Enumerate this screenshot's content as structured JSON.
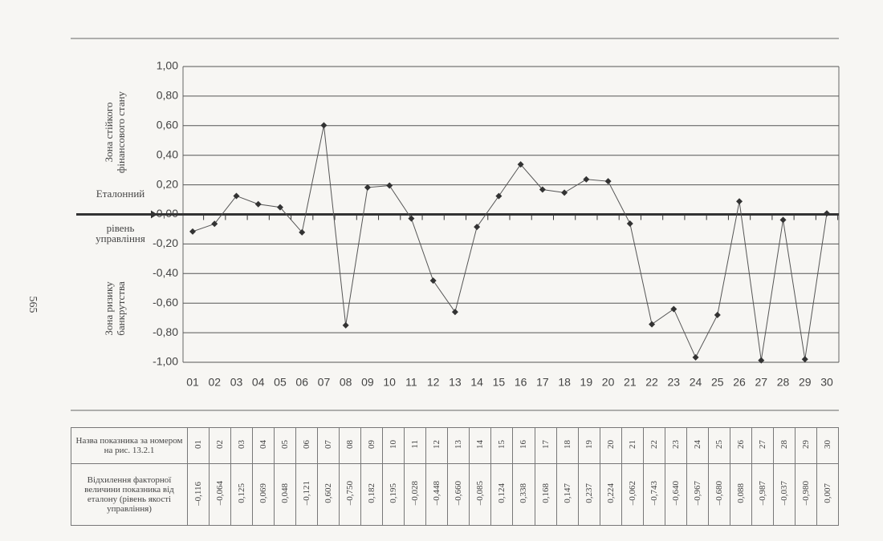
{
  "page_number": "565",
  "chart_data": {
    "type": "line",
    "categories": [
      "01",
      "02",
      "03",
      "04",
      "05",
      "06",
      "07",
      "08",
      "09",
      "10",
      "11",
      "12",
      "13",
      "14",
      "15",
      "16",
      "17",
      "18",
      "19",
      "20",
      "21",
      "22",
      "23",
      "24",
      "25",
      "26",
      "27",
      "28",
      "29",
      "30"
    ],
    "values": [
      -0.116,
      -0.064,
      0.125,
      0.069,
      0.048,
      -0.121,
      0.602,
      -0.75,
      0.182,
      0.195,
      -0.028,
      -0.448,
      -0.66,
      -0.085,
      0.124,
      0.338,
      0.168,
      0.147,
      0.237,
      0.224,
      -0.062,
      -0.743,
      -0.64,
      -0.967,
      -0.68,
      0.088,
      -0.987,
      -0.037,
      -0.98,
      0.007
    ],
    "color": "#555555",
    "ylim": [
      -1,
      1
    ],
    "yticks": [
      {
        "value": 1,
        "label": "1,00"
      },
      {
        "value": 0.8,
        "label": "0,80"
      },
      {
        "value": 0.6,
        "label": "0,60"
      },
      {
        "value": 0.4,
        "label": "0,40"
      },
      {
        "value": 0.2,
        "label": "0,20"
      },
      {
        "value": 0,
        "label": "0,00"
      },
      {
        "value": -0.2,
        "label": "-0,20"
      },
      {
        "value": -0.4,
        "label": "-0,40"
      },
      {
        "value": -0.6,
        "label": "-0,60"
      },
      {
        "value": -0.8,
        "label": "-0,80"
      },
      {
        "value": -1,
        "label": "-1,00"
      }
    ],
    "grid": true,
    "annotations": [
      "Зона стійкого",
      "фінансового стану",
      "Еталонний",
      "рівень",
      "управління",
      "Зона ризику",
      "банкрутства"
    ]
  },
  "table": {
    "rows": [
      [
        "Назва показника за номером на рис. 13.2.1",
        "01",
        "02",
        "03",
        "04",
        "05",
        "06",
        "07",
        "08",
        "09",
        "10",
        "11",
        "12",
        "13",
        "14",
        "15",
        "16",
        "17",
        "18",
        "19",
        "20",
        "21",
        "22",
        "23",
        "24",
        "25",
        "26",
        "27",
        "28",
        "29",
        "30"
      ],
      [
        "Відхилення факторної величини показника від еталону (рівень якості управління)",
        "–0,116",
        "–0,064",
        "0,125",
        "0,069",
        "0,048",
        "–0,121",
        "0,602",
        "–0,750",
        "0,182",
        "0,195",
        "–0,028",
        "–0,448",
        "–0,660",
        "–0,085",
        "0,124",
        "0,338",
        "0,168",
        "0,147",
        "0,237",
        "0,224",
        "–0,062",
        "–0,743",
        "–0,640",
        "–0,967",
        "–0,680",
        "0,088",
        "–0,987",
        "–0,037",
        "–0,980",
        "0,007"
      ]
    ]
  }
}
